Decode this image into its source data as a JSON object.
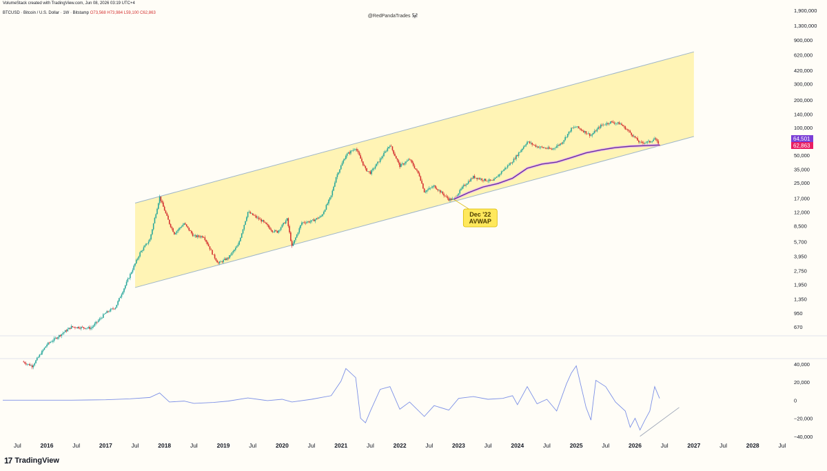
{
  "header": {
    "credit": "VolumeStack created with TradingView.com, Jun 08, 2026 03:19 UTC+4",
    "symbol": "BTCUSD · Bitcoin / U.S. Dollar · 1W · Bitstamp",
    "ohlc": "O73,568  H73,984  L59,100  C62,863",
    "watermark": "@RedPandaTrades 🐼"
  },
  "brand": {
    "name": "TradingView",
    "icon": "tradingview-logo-icon"
  },
  "colors": {
    "channel_fill": "#fff4b5",
    "channel_line": "#9db5c8",
    "candle_up": "#26a69a",
    "candle_down": "#d32f2f",
    "avwap": "#6a2f9e",
    "oscillator": "#7b8fe6",
    "price_badge_purple": "#7b3fd6",
    "price_badge_pink": "#e91e63",
    "callout_bg": "#ffe85c",
    "callout_border": "#d9b800"
  },
  "chart_data": {
    "type": "candlestick",
    "scale": "log",
    "y_ticks": [
      670,
      950,
      1350,
      1950,
      2750,
      3950,
      5700,
      8500,
      12000,
      17000,
      25000,
      35000,
      50000,
      70000,
      100000,
      140000,
      200000,
      300000,
      420000,
      620000,
      900000,
      1300000,
      1900000
    ],
    "y_tick_labels": [
      "670",
      "950",
      "1,350",
      "1,950",
      "2,750",
      "3,950",
      "5,700",
      "8,500",
      "12,000",
      "17,000",
      "25,000",
      "35,000",
      "50,000",
      "70,000",
      "100,000",
      "140,000",
      "200,000",
      "300,000",
      "420,000",
      "620,000",
      "900,000",
      "1,300,000",
      "1,900,000"
    ],
    "x_ticks": [
      "Jul",
      "2016",
      "Jul",
      "2017",
      "Jul",
      "2018",
      "Jul",
      "2019",
      "Jul",
      "2020",
      "Jul",
      "2021",
      "Jul",
      "2022",
      "Jul",
      "2023",
      "Jul",
      "2024",
      "Jul",
      "2025",
      "Jul",
      "2026",
      "Jul",
      "2027",
      "Jul",
      "2028",
      "Jul"
    ],
    "x_range": [
      "2015-04",
      "2028-08"
    ],
    "price_path": [
      [
        "2015-08",
        280
      ],
      [
        "2015-10",
        250
      ],
      [
        "2016-01",
        430
      ],
      [
        "2016-06",
        670
      ],
      [
        "2016-10",
        650
      ],
      [
        "2017-01",
        950
      ],
      [
        "2017-03",
        1100
      ],
      [
        "2017-06",
        2500
      ],
      [
        "2017-08",
        4300
      ],
      [
        "2017-10",
        6000
      ],
      [
        "2017-12",
        17500
      ],
      [
        "2018-02",
        9000
      ],
      [
        "2018-03",
        7000
      ],
      [
        "2018-05",
        9000
      ],
      [
        "2018-07",
        6500
      ],
      [
        "2018-09",
        6500
      ],
      [
        "2018-11",
        4000
      ],
      [
        "2018-12",
        3300
      ],
      [
        "2019-02",
        3800
      ],
      [
        "2019-04",
        5200
      ],
      [
        "2019-06",
        12000
      ],
      [
        "2019-09",
        9500
      ],
      [
        "2019-11",
        7500
      ],
      [
        "2019-12",
        7300
      ],
      [
        "2020-02",
        10000
      ],
      [
        "2020-03",
        5000
      ],
      [
        "2020-05",
        9200
      ],
      [
        "2020-07",
        9500
      ],
      [
        "2020-09",
        10800
      ],
      [
        "2020-11",
        18000
      ],
      [
        "2020-12",
        29000
      ],
      [
        "2021-02",
        50000
      ],
      [
        "2021-04",
        60000
      ],
      [
        "2021-06",
        35000
      ],
      [
        "2021-07",
        32000
      ],
      [
        "2021-09",
        45000
      ],
      [
        "2021-11",
        65000
      ],
      [
        "2022-01",
        38000
      ],
      [
        "2022-03",
        45000
      ],
      [
        "2022-05",
        30000
      ],
      [
        "2022-06",
        20000
      ],
      [
        "2022-08",
        23000
      ],
      [
        "2022-11",
        16500
      ],
      [
        "2022-12",
        16500
      ],
      [
        "2023-02",
        23000
      ],
      [
        "2023-04",
        29000
      ],
      [
        "2023-06",
        27000
      ],
      [
        "2023-08",
        26000
      ],
      [
        "2023-10",
        34000
      ],
      [
        "2023-12",
        43000
      ],
      [
        "2024-03",
        70000
      ],
      [
        "2024-05",
        62000
      ],
      [
        "2024-08",
        58000
      ],
      [
        "2024-10",
        68000
      ],
      [
        "2024-12",
        97000
      ],
      [
        "2025-01",
        102000
      ],
      [
        "2025-04",
        82000
      ],
      [
        "2025-06",
        105000
      ],
      [
        "2025-08",
        115000
      ],
      [
        "2025-10",
        110000
      ],
      [
        "2025-12",
        88000
      ],
      [
        "2026-02",
        68000
      ],
      [
        "2026-04",
        70000
      ],
      [
        "2026-05",
        76000
      ],
      [
        "2026-06",
        62863
      ]
    ],
    "avwap": {
      "label": "Dec '22\nAVWAP",
      "label_lines": [
        "Dec '22",
        "AVWAP"
      ],
      "path": [
        [
          "2022-12",
          16500
        ],
        [
          "2023-03",
          19500
        ],
        [
          "2023-06",
          22500
        ],
        [
          "2023-09",
          24500
        ],
        [
          "2023-12",
          28000
        ],
        [
          "2024-03",
          36000
        ],
        [
          "2024-06",
          40000
        ],
        [
          "2024-09",
          42000
        ],
        [
          "2024-12",
          47000
        ],
        [
          "2025-03",
          53000
        ],
        [
          "2025-06",
          57000
        ],
        [
          "2025-09",
          60500
        ],
        [
          "2025-12",
          62500
        ],
        [
          "2026-03",
          63500
        ],
        [
          "2026-06",
          64501
        ]
      ]
    },
    "channel": {
      "upper": [
        [
          "2017-07",
          15000
        ],
        [
          "2027-01",
          670000
        ]
      ],
      "lower": [
        [
          "2017-07",
          1800
        ],
        [
          "2027-01",
          80000
        ]
      ]
    },
    "last_prices": [
      {
        "label": "64,501",
        "value": 64501
      },
      {
        "label": "62,863",
        "value": 62863
      }
    ],
    "oscillator": {
      "y_ticks": [
        40000,
        20000,
        0,
        -20000,
        -40000
      ],
      "y_tick_labels": [
        "40,000",
        "20,000",
        "0",
        "−20,000",
        "−40,000"
      ],
      "ylim": [
        -44000,
        46000
      ],
      "path": [
        [
          "2015-04",
          0
        ],
        [
          "2016-06",
          0
        ],
        [
          "2017-01",
          500
        ],
        [
          "2017-06",
          1500
        ],
        [
          "2017-10",
          3000
        ],
        [
          "2017-12",
          8000
        ],
        [
          "2018-02",
          -2000
        ],
        [
          "2018-05",
          -1000
        ],
        [
          "2018-07",
          -3500
        ],
        [
          "2018-11",
          -2500
        ],
        [
          "2019-02",
          -1000
        ],
        [
          "2019-06",
          2500
        ],
        [
          "2019-10",
          -500
        ],
        [
          "2020-01",
          1000
        ],
        [
          "2020-03",
          -2000
        ],
        [
          "2020-07",
          1000
        ],
        [
          "2020-11",
          5000
        ],
        [
          "2021-01",
          21000
        ],
        [
          "2021-02",
          35000
        ],
        [
          "2021-04",
          25000
        ],
        [
          "2021-05",
          -20000
        ],
        [
          "2021-06",
          -25000
        ],
        [
          "2021-07",
          -12000
        ],
        [
          "2021-09",
          12000
        ],
        [
          "2021-11",
          15000
        ],
        [
          "2022-01",
          -10000
        ],
        [
          "2022-03",
          -2000
        ],
        [
          "2022-06",
          -18000
        ],
        [
          "2022-08",
          -6000
        ],
        [
          "2022-11",
          -11000
        ],
        [
          "2023-01",
          2000
        ],
        [
          "2023-04",
          4000
        ],
        [
          "2023-07",
          1000
        ],
        [
          "2023-10",
          2000
        ],
        [
          "2023-12",
          5000
        ],
        [
          "2024-01",
          -5000
        ],
        [
          "2024-03",
          15000
        ],
        [
          "2024-05",
          -4000
        ],
        [
          "2024-07",
          1000
        ],
        [
          "2024-09",
          -12000
        ],
        [
          "2024-11",
          18000
        ],
        [
          "2024-12",
          30000
        ],
        [
          "2025-01",
          38000
        ],
        [
          "2025-03",
          -8000
        ],
        [
          "2025-04",
          -22000
        ],
        [
          "2025-05",
          22000
        ],
        [
          "2025-07",
          15000
        ],
        [
          "2025-09",
          -2000
        ],
        [
          "2025-11",
          -12000
        ],
        [
          "2025-12",
          -30000
        ],
        [
          "2026-01",
          -20000
        ],
        [
          "2026-02",
          -33000
        ],
        [
          "2026-03",
          -22000
        ],
        [
          "2026-04",
          -12000
        ],
        [
          "2026-05",
          15000
        ],
        [
          "2026-06",
          2000
        ]
      ],
      "trendline": [
        [
          "2026-02",
          -40000
        ],
        [
          "2026-10",
          -8000
        ]
      ]
    }
  }
}
